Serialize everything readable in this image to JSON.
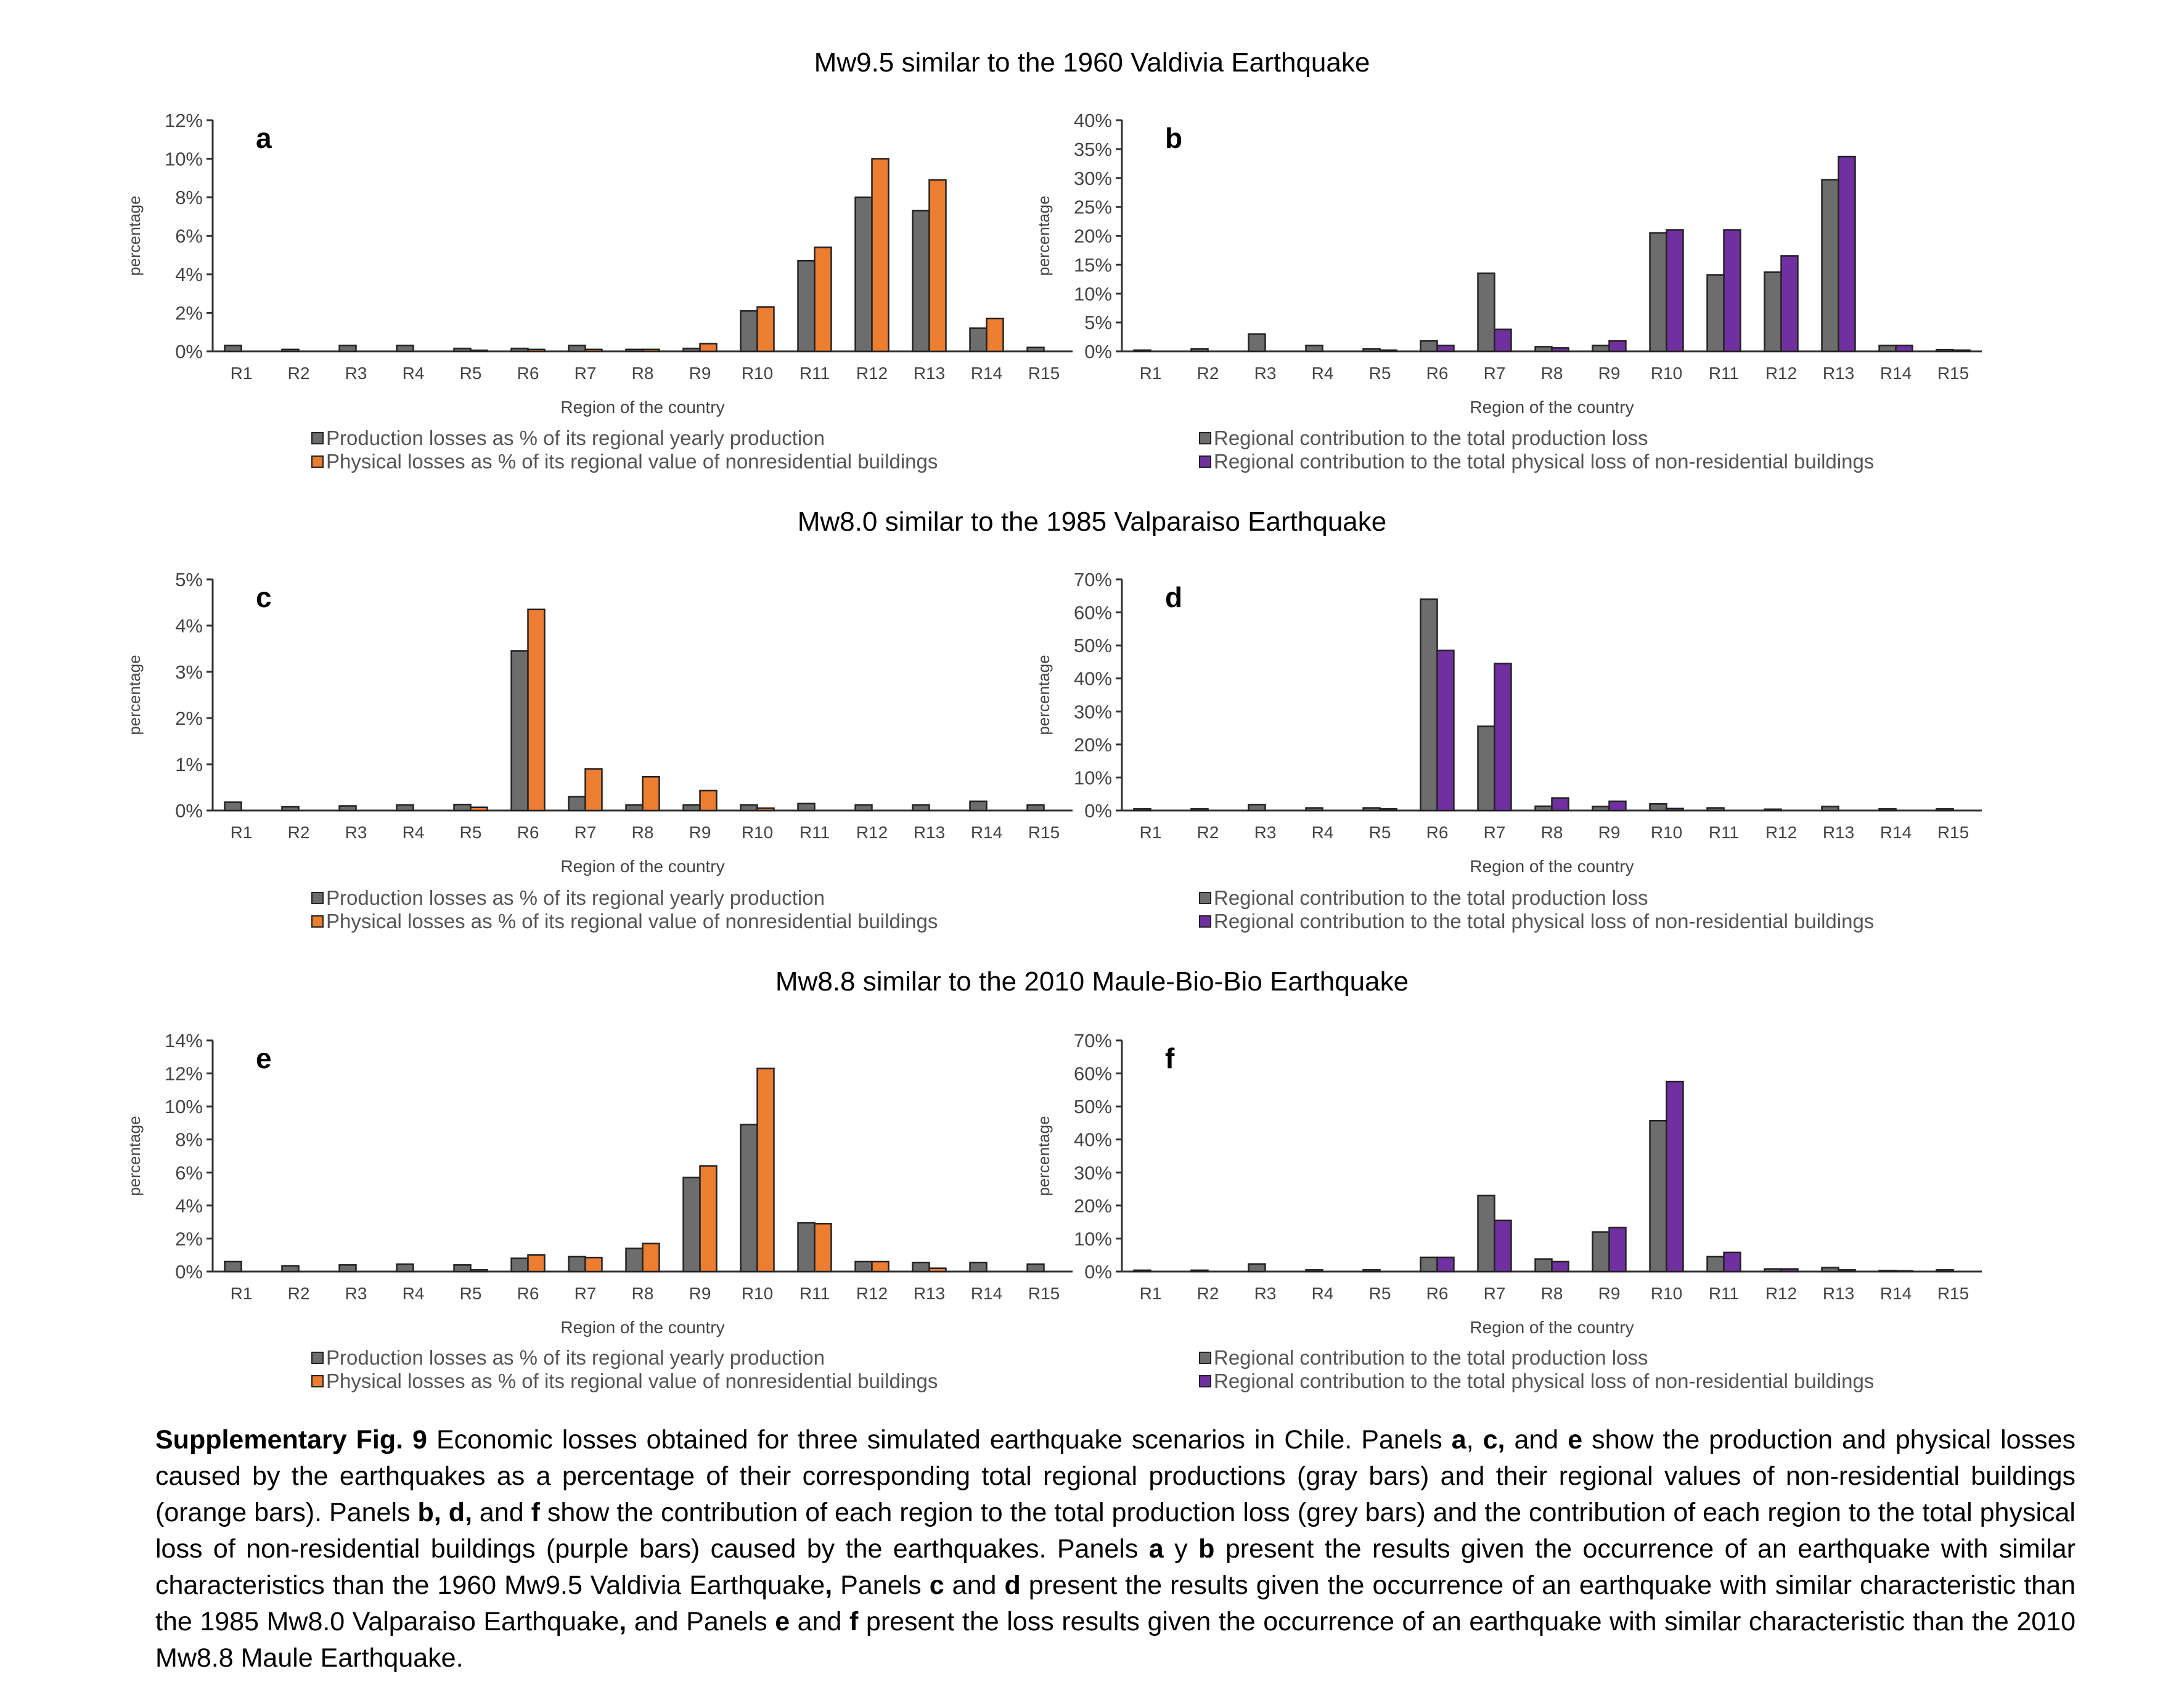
{
  "figure": {
    "row_titles": [
      "Mw9.5 similar to the 1960 Valdivia Earthquake",
      "Mw8.0 similar to the 1985 Valparaiso Earthquake",
      "Mw8.8 similar to the 2010 Maule-Bio-Bio Earthquake"
    ],
    "legend_left": [
      "Production losses as % of its regional yearly production",
      "Physical losses as % of its regional value of nonresidential buildings"
    ],
    "legend_right": [
      "Regional contribution to the total production loss",
      "Regional contribution to the total physical loss of non-residential buildings"
    ],
    "caption": {
      "label": "Supplementary Fig. 9",
      "s1": " Economic losses obtained for three simulated earthquake scenarios in Chile. Panels ",
      "a": "a",
      "comma1": ", ",
      "c": "c,",
      "and1": " and ",
      "e": "e",
      "s2": " show the production and physical losses caused by the earthquakes as a percentage of their corresponding total regional productions (gray bars) and their regional values of non-residential buildings (orange bars). Panels ",
      "b": "b,",
      "sp1": " ",
      "d": "d,",
      "and2": " and ",
      "f": "f",
      "s3": " show the contribution of each region to the total production loss (grey bars) and the contribution of each region to the total physical loss of non-residential buildings (purple bars) caused by the earthquakes. Panels ",
      "a2": "a",
      "y": " y ",
      "b2": "b",
      "s4": " present the results given the occurrence of an earthquake with similar characteristics than the 1960 Mw9.5 Valdivia Earthquake",
      "comma2": ",",
      "s5": " Panels ",
      "c2": "c",
      "and3": " and ",
      "d2": "d",
      "s6": " present the results given the occurrence of an earthquake with similar characteristic than the 1985 Mw8.0 Valparaiso Earthquake",
      "comma3": ",",
      "s7": " and Panels ",
      "e2": "e",
      "and4": " and ",
      "f2": "f",
      "s8": " present the loss results given the occurrence of an earthquake with similar characteristic than the 2010 Mw8.8 Maule Earthquake."
    }
  },
  "colors": {
    "gray": "#6d6d6d",
    "orange": "#ed7d31",
    "purple": "#7030a0",
    "axis": "#333333",
    "outline": "#222222"
  },
  "chart_data": [
    {
      "panel": "a",
      "type": "bar",
      "categories": [
        "R1",
        "R2",
        "R3",
        "R4",
        "R5",
        "R6",
        "R7",
        "R8",
        "R9",
        "R10",
        "R11",
        "R12",
        "R13",
        "R14",
        "R15"
      ],
      "ylabel": "percentage",
      "xlabel": "Region of the country",
      "ylim": [
        0,
        12
      ],
      "yticks": [
        0,
        2,
        4,
        6,
        8,
        10,
        12
      ],
      "ytick_labels": [
        "0%",
        "2%",
        "4%",
        "6%",
        "8%",
        "10%",
        "12%"
      ],
      "series": [
        {
          "values": [
            0.3,
            0.1,
            0.3,
            0.3,
            0.15,
            0.15,
            0.3,
            0.1,
            0.15,
            2.1,
            4.7,
            8.0,
            7.3,
            1.2,
            0.2
          ]
        },
        {
          "values": [
            0.0,
            0.0,
            0.0,
            0.0,
            0.05,
            0.1,
            0.1,
            0.1,
            0.4,
            2.3,
            5.4,
            10.0,
            8.9,
            1.7,
            0.0
          ]
        }
      ]
    },
    {
      "panel": "b",
      "type": "bar",
      "categories": [
        "R1",
        "R2",
        "R3",
        "R4",
        "R5",
        "R6",
        "R7",
        "R8",
        "R9",
        "R10",
        "R11",
        "R12",
        "R13",
        "R14",
        "R15"
      ],
      "ylabel": "percentage",
      "xlabel": "Region of the country",
      "ylim": [
        0,
        40
      ],
      "yticks": [
        0,
        5,
        10,
        15,
        20,
        25,
        30,
        35,
        40
      ],
      "ytick_labels": [
        "0%",
        "5%",
        "10%",
        "15%",
        "20%",
        "25%",
        "30%",
        "35%",
        "40%"
      ],
      "series": [
        {
          "values": [
            0.2,
            0.4,
            3.0,
            1.0,
            0.4,
            1.8,
            13.5,
            0.8,
            1.0,
            20.5,
            13.2,
            13.7,
            29.7,
            1.0,
            0.3
          ]
        },
        {
          "values": [
            0.0,
            0.0,
            0.0,
            0.0,
            0.2,
            1.0,
            3.8,
            0.6,
            1.8,
            21.0,
            21.0,
            16.5,
            33.7,
            1.0,
            0.2
          ]
        }
      ]
    },
    {
      "panel": "c",
      "type": "bar",
      "categories": [
        "R1",
        "R2",
        "R3",
        "R4",
        "R5",
        "R6",
        "R7",
        "R8",
        "R9",
        "R10",
        "R11",
        "R12",
        "R13",
        "R14",
        "R15"
      ],
      "ylabel": "percentage",
      "xlabel": "Region of the country",
      "ylim": [
        0,
        5
      ],
      "yticks": [
        0,
        1,
        2,
        3,
        4,
        5
      ],
      "ytick_labels": [
        "0%",
        "1%",
        "2%",
        "3%",
        "4%",
        "5%"
      ],
      "series": [
        {
          "values": [
            0.18,
            0.08,
            0.1,
            0.12,
            0.13,
            3.45,
            0.3,
            0.12,
            0.12,
            0.12,
            0.15,
            0.12,
            0.12,
            0.2,
            0.12
          ]
        },
        {
          "values": [
            0.0,
            0.0,
            0.0,
            0.0,
            0.07,
            4.35,
            0.9,
            0.73,
            0.43,
            0.05,
            0.0,
            0.0,
            0.0,
            0.0,
            0.0
          ]
        }
      ]
    },
    {
      "panel": "d",
      "type": "bar",
      "categories": [
        "R1",
        "R2",
        "R3",
        "R4",
        "R5",
        "R6",
        "R7",
        "R8",
        "R9",
        "R10",
        "R11",
        "R12",
        "R13",
        "R14",
        "R15"
      ],
      "ylabel": "percentage",
      "xlabel": "Region of the country",
      "ylim": [
        0,
        70
      ],
      "yticks": [
        0,
        10,
        20,
        30,
        40,
        50,
        60,
        70
      ],
      "ytick_labels": [
        "0%",
        "10%",
        "20%",
        "30%",
        "40%",
        "50%",
        "60%",
        "70%"
      ],
      "series": [
        {
          "values": [
            0.5,
            0.5,
            1.8,
            0.8,
            0.8,
            64.0,
            25.5,
            1.3,
            1.2,
            2.0,
            0.8,
            0.4,
            1.2,
            0.5,
            0.5
          ]
        },
        {
          "values": [
            0.0,
            0.0,
            0.0,
            0.0,
            0.5,
            48.5,
            44.5,
            3.8,
            2.8,
            0.6,
            0.0,
            0.0,
            0.0,
            0.0,
            0.0
          ]
        }
      ]
    },
    {
      "panel": "e",
      "type": "bar",
      "categories": [
        "R1",
        "R2",
        "R3",
        "R4",
        "R5",
        "R6",
        "R7",
        "R8",
        "R9",
        "R10",
        "R11",
        "R12",
        "R13",
        "R14",
        "R15"
      ],
      "ylabel": "percentage",
      "xlabel": "Region of the country",
      "ylim": [
        0,
        14
      ],
      "yticks": [
        0,
        2,
        4,
        6,
        8,
        10,
        12,
        14
      ],
      "ytick_labels": [
        "0%",
        "2%",
        "4%",
        "6%",
        "8%",
        "10%",
        "12%",
        "14%"
      ],
      "series": [
        {
          "values": [
            0.6,
            0.35,
            0.4,
            0.45,
            0.4,
            0.8,
            0.9,
            1.4,
            5.7,
            8.9,
            2.95,
            0.6,
            0.55,
            0.55,
            0.45
          ]
        },
        {
          "values": [
            0.0,
            0.0,
            0.0,
            0.0,
            0.1,
            1.0,
            0.85,
            1.7,
            6.4,
            12.3,
            2.9,
            0.6,
            0.2,
            0.0,
            0.0
          ]
        }
      ]
    },
    {
      "panel": "f",
      "type": "bar",
      "categories": [
        "R1",
        "R2",
        "R3",
        "R4",
        "R5",
        "R6",
        "R7",
        "R8",
        "R9",
        "R10",
        "R11",
        "R12",
        "R13",
        "R14",
        "R15"
      ],
      "ylabel": "percentage",
      "xlabel": "Region of the country",
      "ylim": [
        0,
        70
      ],
      "yticks": [
        0,
        10,
        20,
        30,
        40,
        50,
        60,
        70
      ],
      "ytick_labels": [
        "0%",
        "10%",
        "20%",
        "30%",
        "40%",
        "50%",
        "60%",
        "70%"
      ],
      "series": [
        {
          "values": [
            0.4,
            0.4,
            2.3,
            0.5,
            0.5,
            4.3,
            23.0,
            3.8,
            12.0,
            45.7,
            4.5,
            0.8,
            1.2,
            0.3,
            0.5
          ]
        },
        {
          "values": [
            0.0,
            0.0,
            0.0,
            0.0,
            0.0,
            4.3,
            15.5,
            3.0,
            13.3,
            57.5,
            5.8,
            0.8,
            0.5,
            0.2,
            0.0
          ]
        }
      ]
    }
  ]
}
